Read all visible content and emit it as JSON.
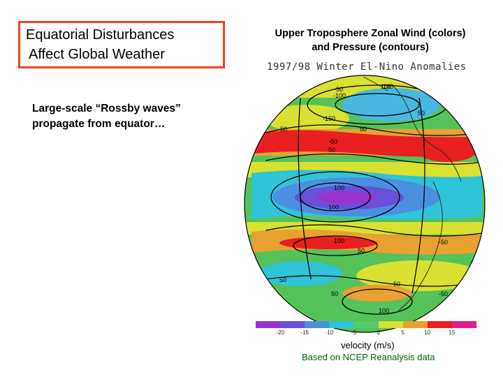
{
  "slide": {
    "title_line1": "Equatorial Disturbances",
    "title_line2": "Affect Global Weather",
    "note_line1": "Large-scale “Rossby waves”",
    "note_line2": "propagate from equator…"
  },
  "map": {
    "title_line1": "Upper Troposphere Zonal Wind (colors)",
    "title_line2": "and Pressure (contours)",
    "subtitle": "1997/98 Winter El-Nino Anomalies",
    "contour_labels": [
      "-50",
      "-100",
      "100",
      "50",
      "-150",
      "-50",
      "50",
      "-50",
      "50",
      "100",
      "100",
      "100",
      "100",
      "50",
      "-50",
      "50",
      "-50",
      "50",
      "-50",
      "100"
    ],
    "colorbar": {
      "ticks": [
        "-20",
        "-15",
        "-10",
        "-5",
        "0",
        "5",
        "10",
        "15"
      ],
      "colors": [
        "#9933cc",
        "#6a4fd8",
        "#4b8fe0",
        "#2fc4d8",
        "#55cc66",
        "#d8e030",
        "#e8a030",
        "#e82020",
        "#e0208a"
      ],
      "units": "velocity (m/s)"
    },
    "credit": "Based on NCEP Reanalysis data"
  }
}
